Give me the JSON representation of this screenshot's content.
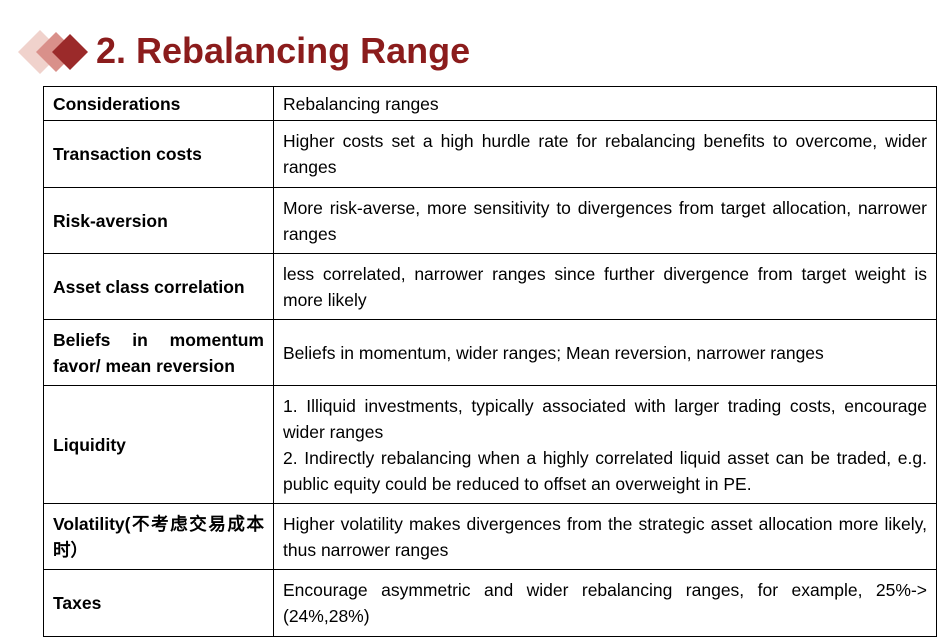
{
  "header": {
    "title": "2. Rebalancing Range"
  },
  "table": {
    "columns": [
      "Considerations",
      "Rebalancing ranges"
    ],
    "rows": [
      [
        "Transaction costs",
        [
          "Higher costs set a high hurdle rate for rebalancing benefits to overcome, wider ranges"
        ]
      ],
      [
        "Risk-aversion",
        [
          "More risk-averse, more sensitivity to divergences from target allocation, narrower ranges"
        ]
      ],
      [
        "Asset class correlation",
        [
          "less correlated, narrower ranges since further divergence from target weight is more likely"
        ]
      ],
      [
        "Beliefs in momentum favor/ mean reversion",
        [
          "Beliefs in momentum, wider ranges; Mean reversion, narrower ranges"
        ]
      ],
      [
        "Liquidity",
        [
          "1. Illiquid investments, typically associated with larger trading costs, encourage wider ranges",
          "2. Indirectly rebalancing when a highly correlated liquid asset can be traded, e.g. public equity could be reduced to offset an overweight in PE."
        ]
      ],
      [
        "Volatility(不考虑交易成本时）",
        [
          "Higher volatility makes divergences from the strategic asset allocation more likely, thus narrower ranges"
        ]
      ],
      [
        "Taxes",
        [
          "Encourage asymmetric and wider rebalancing ranges, for example, 25%->(24%,28%)"
        ]
      ]
    ]
  }
}
